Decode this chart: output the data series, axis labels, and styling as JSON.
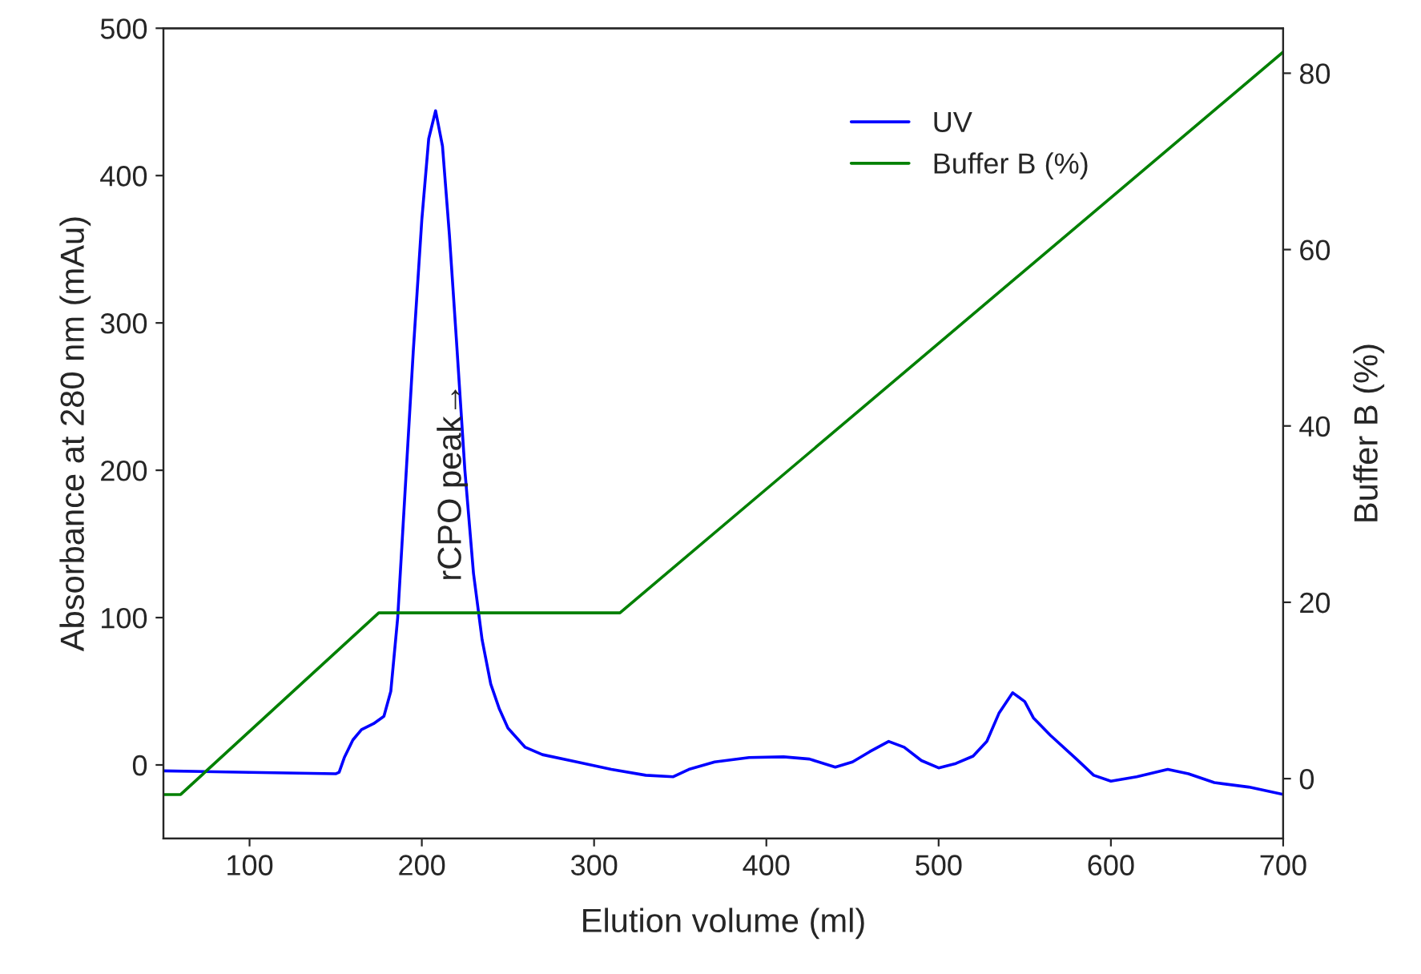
{
  "chart_data": {
    "type": "line",
    "xlabel": "Elution volume (ml)",
    "ylabel": "Absorbance at 280 nm (mAu)",
    "y2label": "Buffer B (%)",
    "xlim": [
      50,
      700
    ],
    "xticks": [
      100,
      200,
      300,
      400,
      500,
      600,
      700
    ],
    "ylim": [
      -50,
      500
    ],
    "yticks": [
      0,
      100,
      200,
      300,
      400,
      500
    ],
    "y2lim": [
      -6.8,
      85.1
    ],
    "y2ticks": [
      0,
      20,
      40,
      60,
      80
    ],
    "grid": false,
    "legend": "top right",
    "marker": "none",
    "line_style": "solid",
    "annotations": [
      "rCPO peak→"
    ],
    "series": [
      {
        "name": "UV",
        "color": "#0000ff",
        "x": [
          50,
          100,
          150,
          152,
          155,
          160,
          165,
          172,
          178,
          182,
          186,
          190,
          195,
          200,
          204,
          208,
          212,
          216,
          220,
          225,
          230,
          235,
          240,
          245,
          250,
          260,
          270,
          290,
          310,
          330,
          346,
          355,
          370,
          390,
          410,
          425,
          440,
          450,
          460,
          471,
          480,
          490,
          500,
          510,
          520,
          528,
          535,
          543,
          550,
          555,
          565,
          580,
          590,
          600,
          615,
          633,
          645,
          660,
          680,
          700
        ],
        "values": [
          -4,
          -5,
          -6,
          -5,
          5,
          17,
          24,
          28,
          33,
          50,
          100,
          180,
          280,
          370,
          425,
          444,
          420,
          360,
          290,
          200,
          130,
          85,
          55,
          38,
          25,
          12,
          7,
          2,
          -3,
          -7,
          -8,
          -3,
          2,
          5,
          5.5,
          4,
          -1.5,
          2,
          9,
          16,
          12,
          3,
          -2,
          1,
          6,
          16,
          35,
          49,
          43,
          32,
          20,
          4,
          -7,
          -11,
          -8,
          -3,
          -6,
          -12,
          -15,
          -20
        ]
      },
      {
        "name": "Buffer B (%)",
        "color": "#008000",
        "axis": "y2",
        "x": [
          50,
          60,
          175,
          315,
          700
        ],
        "values": [
          -1.8,
          -1.8,
          18.8,
          18.8,
          82.4
        ]
      }
    ]
  }
}
